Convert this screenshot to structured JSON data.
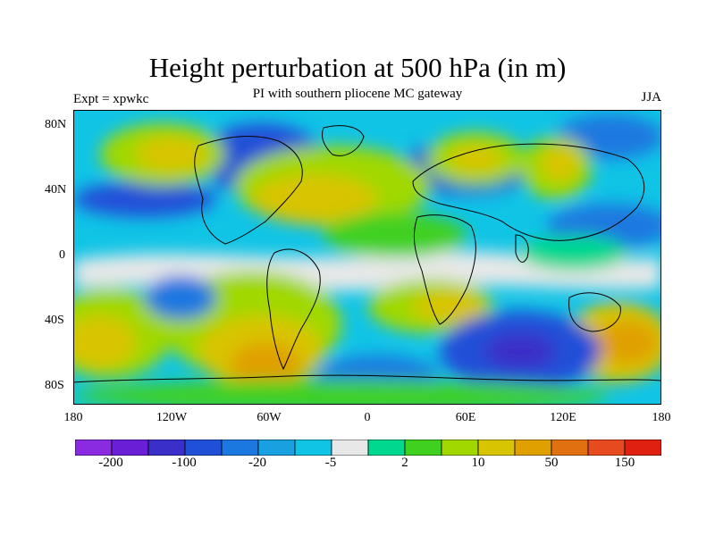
{
  "title": "Height perturbation at 500 hPa (in m)",
  "subtitle": "PI with southern pliocene MC gateway",
  "left_label": "Expt = xpwkc",
  "right_label": "JJA",
  "y_ticks": [
    "80N",
    "40N",
    "0",
    "40S",
    "80S"
  ],
  "x_ticks": [
    "180",
    "120W",
    "60W",
    "0",
    "60E",
    "120E",
    "180"
  ],
  "colorbar": {
    "colors": [
      "#8a2be2",
      "#6a1fd6",
      "#3a2fc8",
      "#2050d8",
      "#1a78e0",
      "#18a0e0",
      "#10c4e6",
      "#e8e8e8",
      "#00d890",
      "#40d020",
      "#a0d800",
      "#d8c400",
      "#e0a000",
      "#e07010",
      "#e84a20",
      "#e02010"
    ],
    "labels": [
      "-200",
      "-100",
      "-20",
      "-5",
      "2",
      "10",
      "50",
      "150"
    ]
  },
  "chart_data": {
    "type": "heatmap",
    "title": "Height perturbation at 500 hPa (in m)",
    "subtitle": "PI with southern pliocene MC gateway",
    "xlabel": "",
    "ylabel": "",
    "x_range": [
      -180,
      180
    ],
    "y_range": [
      -90,
      90
    ],
    "x_ticks": [
      "180",
      "120W",
      "60W",
      "0",
      "60E",
      "120E",
      "180"
    ],
    "y_ticks": [
      "80N",
      "40N",
      "0",
      "40S",
      "80S"
    ],
    "levels": [
      "-200",
      "-100",
      "-20",
      "-5",
      "2",
      "10",
      "50",
      "150"
    ]
  }
}
